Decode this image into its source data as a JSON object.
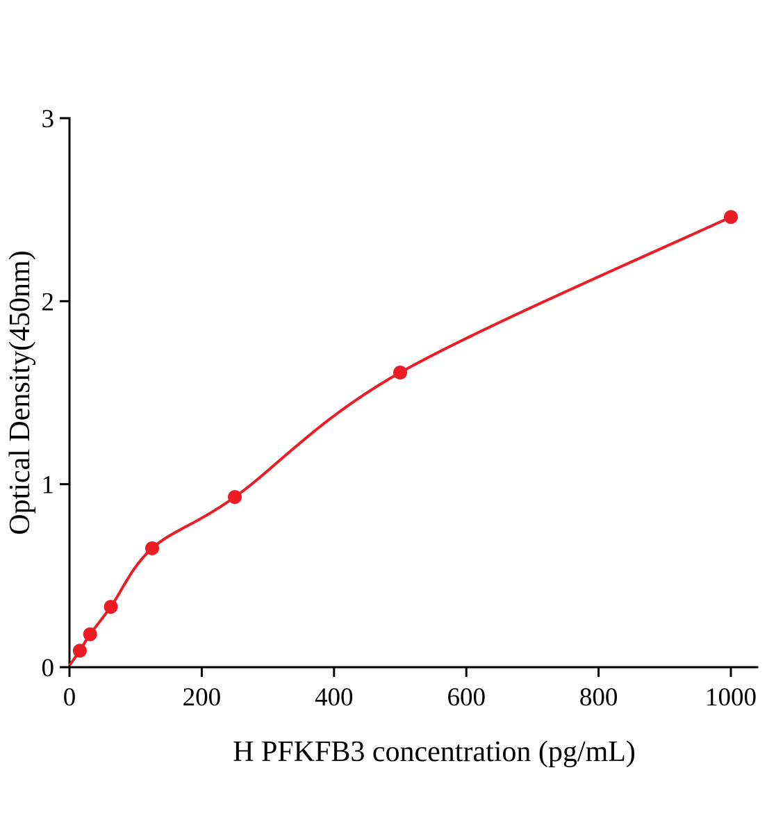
{
  "figure": {
    "background": "#ffffff"
  },
  "chart_data": {
    "type": "scatter",
    "title": "",
    "xlabel": "H PFKFB3 concentration (pg/mL)",
    "ylabel": "Optical Density(450nm)",
    "x": [
      15.6,
      31.2,
      62.5,
      125,
      250,
      500,
      1000
    ],
    "y": [
      0.09,
      0.18,
      0.33,
      0.65,
      0.93,
      1.61,
      2.46
    ],
    "curve_start": {
      "x": 0,
      "y": 0.01
    },
    "xlim": [
      0,
      1040
    ],
    "ylim": [
      0,
      3
    ],
    "x_ticks": [
      0,
      200,
      400,
      600,
      800,
      1000
    ],
    "y_ticks": [
      0,
      1,
      2,
      3
    ],
    "series_color": "#ec1c24",
    "axis_color": "#000000",
    "marker": "circle",
    "line": "smooth fitted curve through points from origin",
    "grid": false,
    "legend": "none"
  }
}
